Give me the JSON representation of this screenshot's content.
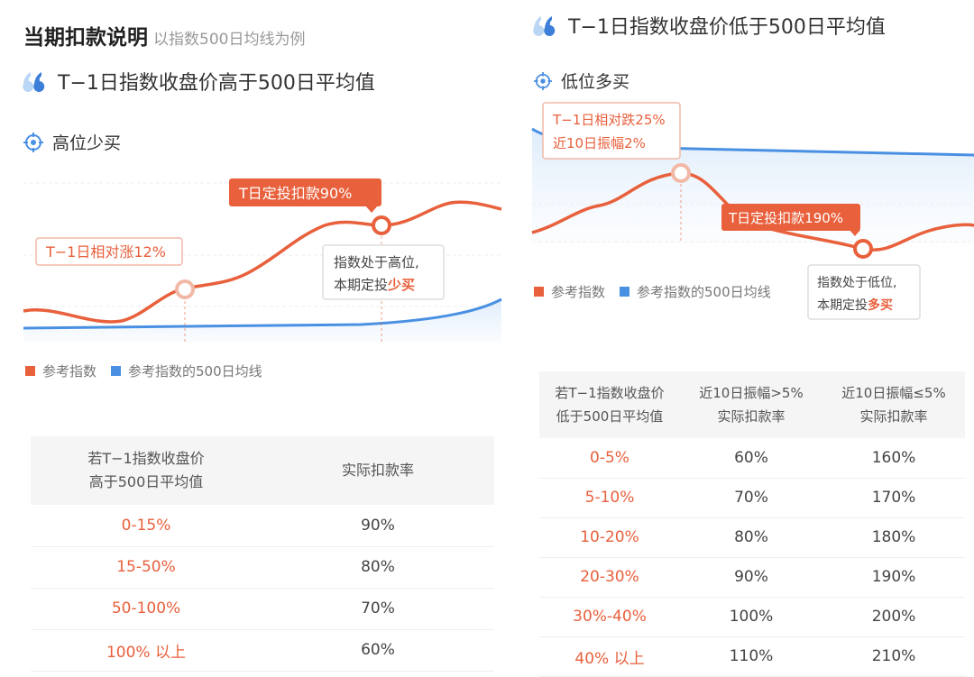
{
  "header": {
    "title": "当期扣款说明",
    "subtitle": "以指数500日均线为例"
  },
  "colors": {
    "accent": "#e8603c",
    "blue": "#4a90e2",
    "ma_fill": "#dcebfa"
  },
  "left": {
    "heading": "T−1日指数收盘价高于500日平均值",
    "subheading": "高位少买",
    "chart": {
      "callout_rise": "T−1日相对涨12%",
      "callout_deduct": "T日定投扣款90%",
      "note_line1": "指数处于高位,",
      "note_line2_prefix": "本期定投",
      "note_line2_highlight": "少买"
    },
    "legend": {
      "series1": "参考指数",
      "series2": "参考指数的500日均线"
    },
    "table": {
      "header_col1_line1": "若T−1指数收盘价",
      "header_col1_line2": "高于500日平均值",
      "header_col2": "实际扣款率",
      "rows": [
        {
          "range": "0-15%",
          "rate": "90%"
        },
        {
          "range": "15-50%",
          "rate": "80%"
        },
        {
          "range": "50-100%",
          "rate": "70%"
        },
        {
          "range": "100% 以上",
          "rate": "60%"
        }
      ]
    }
  },
  "right": {
    "heading": "T−1日指数收盘价低于500日平均值",
    "subheading": "低位多买",
    "chart": {
      "callout_line1": "T−1日相对跌25%",
      "callout_line2": "近10日振幅2%",
      "callout_deduct": "T日定投扣款190%",
      "note_line1": "指数处于低位,",
      "note_line2_prefix": "本期定投",
      "note_line2_highlight": "多买"
    },
    "legend": {
      "series1": "参考指数",
      "series2": "参考指数的500日均线"
    },
    "table": {
      "header_col1_line1": "若T−1指数收盘价",
      "header_col1_line2": "低于500日平均值",
      "header_col2_line1": "近10日振幅>5%",
      "header_col2_line2": "实际扣款率",
      "header_col3_line1": "近10日振幅≤5%",
      "header_col3_line2": "实际扣款率",
      "rows": [
        {
          "range": "0-5%",
          "rate_high": "60%",
          "rate_low": "160%"
        },
        {
          "range": "5-10%",
          "rate_high": "70%",
          "rate_low": "170%"
        },
        {
          "range": "10-20%",
          "rate_high": "80%",
          "rate_low": "180%"
        },
        {
          "range": "20-30%",
          "rate_high": "90%",
          "rate_low": "190%"
        },
        {
          "range": "30%-40%",
          "rate_high": "100%",
          "rate_low": "200%"
        },
        {
          "range": "40% 以上",
          "rate_high": "110%",
          "rate_low": "210%"
        }
      ]
    }
  }
}
